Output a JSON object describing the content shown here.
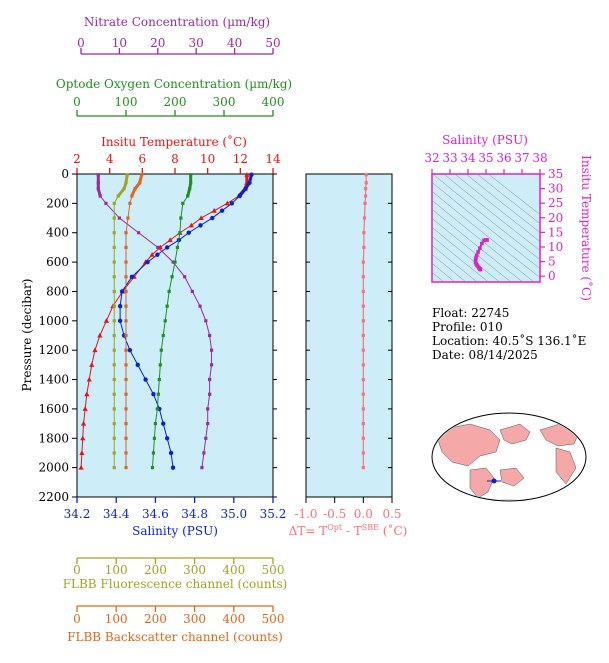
{
  "colors": {
    "nitrate": "#9b2aa0",
    "oxygen": "#1f8f1f",
    "temperature": "#ee1111",
    "salinity": "#0a1fd6",
    "fluorescence": "#a3a324",
    "backscatter": "#e0661a",
    "delta": "#ff6f7a",
    "ts": "#e020c8",
    "panel_bg": "#cdeef8"
  },
  "info": {
    "float": "Float:  22745",
    "profile": "Profile:  010",
    "location": "Location:  40.5˚S  136.1˚E",
    "date": "Date:  08/14/2025"
  },
  "axes": {
    "pressure_label": "Pressure (decibar)",
    "nitrate_label": "Nitrate Concentration (µm/kg)",
    "oxygen_label": "Optode Oxygen Concentration (µm/kg)",
    "temperature_label": "Insitu Temperature (˚C)",
    "salinity_label": "Salinity (PSU)",
    "fluorescence_label": "FLBB Fluorescence channel (counts)",
    "backscatter_label": "FLBB Backscatter channel (counts)",
    "delta_label": "ΔT= T",
    "delta_sup1": "Opt",
    "delta_mid": " - T",
    "delta_sup2": "SBE",
    "delta_unit": " (˚C)",
    "ts_salinity_label": "Salinity (PSU)",
    "ts_temperature_label": "Insitu Temperature (˚C)"
  },
  "chart_data": [
    {
      "type": "line",
      "name": "profile-panel",
      "y_axis": {
        "label": "Pressure (decibar)",
        "range": [
          2200,
          0
        ],
        "ticks": [
          0,
          200,
          400,
          600,
          800,
          1000,
          1200,
          1400,
          1600,
          1800,
          2000,
          2200
        ]
      },
      "x_axes": {
        "temperature": {
          "range": [
            2,
            14
          ],
          "ticks": [
            2,
            4,
            6,
            8,
            10,
            12,
            14
          ]
        },
        "salinity": {
          "range": [
            34.2,
            35.2
          ],
          "ticks": [
            34.2,
            34.4,
            34.6,
            34.8,
            35.0,
            35.2
          ]
        },
        "nitrate": {
          "range": [
            0,
            50
          ],
          "ticks": [
            0,
            10,
            20,
            30,
            40,
            50
          ]
        },
        "oxygen": {
          "range": [
            0,
            400
          ],
          "ticks": [
            0,
            100,
            200,
            300,
            400
          ]
        },
        "fluorescence": {
          "range": [
            0,
            500
          ],
          "ticks": [
            0,
            100,
            200,
            300,
            400,
            500
          ]
        },
        "backscatter": {
          "range": [
            0,
            500
          ],
          "ticks": [
            0,
            100,
            200,
            300,
            400,
            500
          ]
        }
      },
      "series": [
        {
          "key": "temperature",
          "p": [
            5,
            60,
            100,
            150,
            200,
            250,
            300,
            350,
            400,
            450,
            500,
            550,
            600,
            700,
            800,
            900,
            1000,
            1100,
            1200,
            1300,
            1400,
            1500,
            1600,
            1700,
            1800,
            1900,
            2000
          ],
          "v": [
            12.4,
            12.4,
            12.3,
            11.9,
            11.2,
            10.4,
            9.6,
            9.0,
            8.3,
            7.7,
            7.1,
            6.6,
            6.2,
            5.5,
            4.8,
            4.2,
            3.8,
            3.4,
            3.1,
            2.9,
            2.75,
            2.6,
            2.5,
            2.4,
            2.35,
            2.3,
            2.25
          ]
        },
        {
          "key": "salinity",
          "p": [
            5,
            60,
            100,
            150,
            200,
            250,
            300,
            350,
            400,
            450,
            500,
            550,
            600,
            700,
            800,
            900,
            1000,
            1100,
            1200,
            1300,
            1400,
            1500,
            1600,
            1700,
            1800,
            1900,
            2000
          ],
          "v": [
            35.09,
            35.08,
            35.06,
            35.03,
            34.99,
            34.94,
            34.89,
            34.83,
            34.77,
            34.72,
            34.66,
            34.61,
            34.56,
            34.48,
            34.43,
            34.42,
            34.42,
            34.44,
            34.47,
            34.51,
            34.55,
            34.59,
            34.62,
            34.64,
            34.66,
            34.68,
            34.69
          ]
        },
        {
          "key": "nitrate",
          "p": [
            5,
            60,
            100,
            150,
            200,
            300,
            400,
            500,
            600,
            700,
            800,
            900,
            1000,
            1100,
            1200,
            1300,
            1400,
            1500,
            1600,
            1700,
            1800,
            1900,
            2000
          ],
          "v": [
            4.5,
            4.5,
            4.5,
            5,
            6.5,
            10,
            15,
            20,
            24,
            27,
            29,
            31,
            32.5,
            33.5,
            34,
            34,
            33.5,
            33.5,
            33,
            33,
            32.5,
            32,
            31.5
          ]
        },
        {
          "key": "oxygen",
          "p": [
            5,
            60,
            100,
            150,
            200,
            300,
            400,
            500,
            600,
            700,
            800,
            900,
            1000,
            1100,
            1200,
            1300,
            1400,
            1500,
            1600,
            1700,
            1800,
            1900,
            2000
          ],
          "v": [
            232,
            232,
            230,
            226,
            216,
            212,
            210,
            205,
            200,
            194,
            188,
            184,
            180,
            176,
            172,
            170,
            168,
            166,
            164,
            160,
            158,
            156,
            154
          ]
        },
        {
          "key": "fluorescence",
          "p": [
            5,
            60,
            100,
            150,
            200,
            300,
            400,
            500,
            600,
            700,
            800,
            900,
            1000,
            1100,
            1200,
            1300,
            1400,
            1500,
            1600,
            1700,
            1800,
            1900,
            2000
          ],
          "v": [
            128,
            125,
            120,
            105,
            95,
            95,
            95,
            95,
            95,
            95,
            95,
            95,
            95,
            95,
            95,
            95,
            95,
            95,
            95,
            95,
            95,
            95,
            95
          ]
        },
        {
          "key": "backscatter",
          "p": [
            5,
            60,
            100,
            150,
            200,
            300,
            400,
            500,
            600,
            700,
            800,
            900,
            1000,
            1100,
            1200,
            1300,
            1400,
            1500,
            1600,
            1700,
            1800,
            1900,
            2000
          ],
          "v": [
            165,
            160,
            148,
            140,
            135,
            130,
            125,
            125,
            125,
            125,
            125,
            125,
            125,
            125,
            125,
            125,
            125,
            125,
            125,
            125,
            125,
            125,
            125
          ]
        }
      ]
    },
    {
      "type": "line",
      "name": "delta-t-panel",
      "x_axis": {
        "range": [
          -1.0,
          0.5
        ],
        "ticks": [
          -1.0,
          -0.5,
          0.0,
          0.5
        ]
      },
      "y_axis": {
        "range": [
          2200,
          0
        ]
      },
      "series": [
        {
          "key": "delta",
          "p": [
            5,
            60,
            100,
            150,
            200,
            300,
            400,
            500,
            600,
            700,
            800,
            900,
            1000,
            1100,
            1200,
            1300,
            1400,
            1500,
            1600,
            1700,
            1800,
            1900,
            2000
          ],
          "v": [
            0.05,
            0.05,
            0.04,
            0.04,
            0.03,
            0.02,
            0.01,
            0.01,
            0.0,
            0.0,
            0.0,
            0.0,
            0.0,
            0.0,
            0.0,
            0.0,
            0.0,
            0.0,
            0.0,
            0.0,
            0.0,
            0.0,
            0.0
          ]
        }
      ]
    },
    {
      "type": "scatter",
      "name": "ts-diagram",
      "x_axis": {
        "range": [
          32,
          38
        ],
        "ticks": [
          32,
          33,
          34,
          35,
          36,
          37,
          38
        ]
      },
      "y_axis": {
        "range": [
          -2,
          35
        ],
        "ticks": [
          0,
          5,
          10,
          15,
          20,
          25,
          30,
          35
        ]
      },
      "series": [
        {
          "key": "ts",
          "s": [
            34.69,
            34.67,
            34.64,
            34.6,
            34.55,
            34.5,
            34.45,
            34.42,
            34.42,
            34.44,
            34.48,
            34.56,
            34.66,
            34.77,
            34.89,
            34.99,
            35.06
          ],
          "t": [
            2.25,
            2.4,
            2.6,
            2.9,
            3.4,
            3.8,
            4.2,
            4.8,
            5.5,
            6.2,
            7.1,
            8.3,
            9.6,
            11.2,
            12.3,
            12.4,
            12.4
          ]
        }
      ]
    }
  ]
}
